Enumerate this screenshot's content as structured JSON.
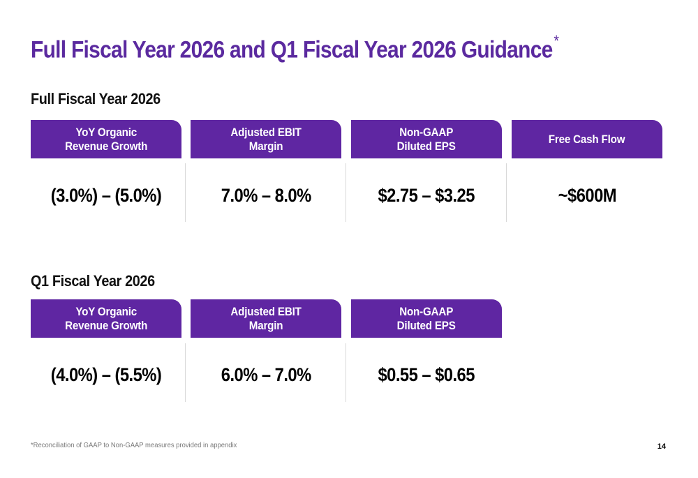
{
  "title": "Full Fiscal Year 2026 and Q1 Fiscal Year 2026 Guidance",
  "title_marker": "*",
  "sections": [
    {
      "heading": "Full Fiscal Year 2026",
      "metrics": [
        {
          "label": "YoY Organic\nRevenue Growth",
          "value": "(3.0%) – (5.0%)"
        },
        {
          "label": "Adjusted EBIT\nMargin",
          "value": "7.0% – 8.0%"
        },
        {
          "label": "Non-GAAP\nDiluted EPS",
          "value": "$2.75 – $3.25"
        },
        {
          "label": "Free Cash Flow",
          "value": "~$600M"
        }
      ]
    },
    {
      "heading": "Q1 Fiscal Year 2026",
      "metrics": [
        {
          "label": "YoY Organic\nRevenue Growth",
          "value": "(4.0%) – (5.5%)"
        },
        {
          "label": "Adjusted EBIT\nMargin",
          "value": "6.0% – 7.0%"
        },
        {
          "label": "Non-GAAP\nDiluted EPS",
          "value": "$0.55 – $0.65"
        }
      ]
    }
  ],
  "footnote": "*Reconciliation of GAAP to Non-GAAP measures provided in appendix",
  "page_number": "14",
  "colors": {
    "accent": "#5f26a2",
    "title": "#5b2a9f"
  }
}
